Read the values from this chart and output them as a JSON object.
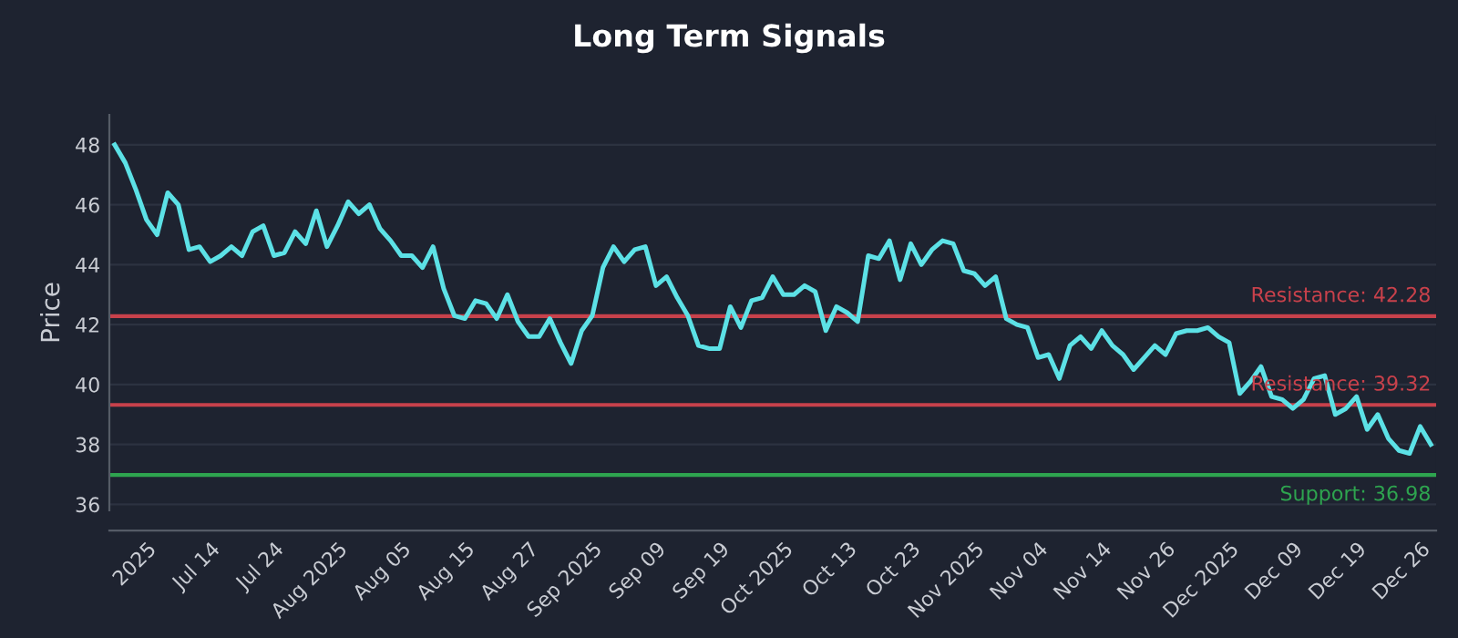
{
  "chart_data": {
    "type": "line",
    "title": "Long Term Signals",
    "ylabel": "Price",
    "categories": [
      null,
      null,
      null,
      "2025",
      null,
      null,
      null,
      null,
      null,
      "Jul 14",
      null,
      null,
      null,
      null,
      null,
      "Jul 24",
      null,
      null,
      null,
      null,
      null,
      "Aug 2025",
      null,
      null,
      null,
      null,
      null,
      "Aug 05",
      null,
      null,
      null,
      null,
      null,
      "Aug 15",
      null,
      null,
      null,
      null,
      null,
      "Aug 27",
      null,
      null,
      null,
      null,
      null,
      "Sep 2025",
      null,
      null,
      null,
      null,
      null,
      "Sep 09",
      null,
      null,
      null,
      null,
      null,
      "Sep 19",
      null,
      null,
      null,
      null,
      null,
      "Oct 2025",
      null,
      null,
      null,
      null,
      null,
      "Oct 13",
      null,
      null,
      null,
      null,
      null,
      "Oct 23",
      null,
      null,
      null,
      null,
      null,
      "Nov 2025",
      null,
      null,
      null,
      null,
      null,
      "Nov 04",
      null,
      null,
      null,
      null,
      null,
      "Nov 14",
      null,
      null,
      null,
      null,
      null,
      "Nov 26",
      null,
      null,
      null,
      null,
      null,
      "Dec 2025",
      null,
      null,
      null,
      null,
      null,
      "Dec 09",
      null,
      null,
      null,
      null,
      null,
      "Dec 19",
      null,
      null,
      null,
      null,
      null,
      "Dec 26",
      null
    ],
    "series": [
      {
        "color": "#5ce1e6",
        "values": [
          48.0,
          47.4,
          46.5,
          45.5,
          45.0,
          46.4,
          46.0,
          44.5,
          44.6,
          44.1,
          44.3,
          44.6,
          44.3,
          45.1,
          45.3,
          44.3,
          44.4,
          45.1,
          44.7,
          45.8,
          44.6,
          45.3,
          46.1,
          45.7,
          46.0,
          45.2,
          44.8,
          44.3,
          44.3,
          43.9,
          44.6,
          43.2,
          42.3,
          42.2,
          42.8,
          42.7,
          42.2,
          43.0,
          42.1,
          41.6,
          41.6,
          42.2,
          41.4,
          40.7,
          41.8,
          42.3,
          43.9,
          44.6,
          44.1,
          44.5,
          44.6,
          43.3,
          43.6,
          42.9,
          42.3,
          41.3,
          41.2,
          41.2,
          42.6,
          41.9,
          42.8,
          42.9,
          43.6,
          43.0,
          43.0,
          43.3,
          43.1,
          41.8,
          42.6,
          42.4,
          42.1,
          44.3,
          44.2,
          44.8,
          43.5,
          44.7,
          44.0,
          44.5,
          44.8,
          44.7,
          43.8,
          43.7,
          43.3,
          43.6,
          42.2,
          42.0,
          41.9,
          40.9,
          41.0,
          40.2,
          41.3,
          41.6,
          41.2,
          41.8,
          41.3,
          41.0,
          40.5,
          40.9,
          41.3,
          41.0,
          41.7,
          41.8,
          41.8,
          41.9,
          41.6,
          41.4,
          39.7,
          40.1,
          40.6,
          39.6,
          39.5,
          39.2,
          39.5,
          40.2,
          40.3,
          39.0,
          39.2,
          39.6,
          38.5,
          39.0,
          38.2,
          37.8,
          37.7,
          38.6,
          38.0
        ]
      }
    ],
    "ylim": [
      35.8,
      49
    ],
    "yticks": [
      36,
      38,
      40,
      42,
      44,
      46,
      48
    ],
    "grid": "y",
    "legend": false,
    "marker": "none",
    "line_style": "solid",
    "ref_lines": [
      {
        "axis": "y",
        "value": 42.28,
        "label": "Resistance: 42.28",
        "color": "#c8414b"
      },
      {
        "axis": "y",
        "value": 39.32,
        "label": "Resistance: 39.32",
        "color": "#c8414b"
      },
      {
        "axis": "y",
        "value": 36.98,
        "label": "Support: 36.98",
        "color": "#2ea44f"
      }
    ]
  }
}
